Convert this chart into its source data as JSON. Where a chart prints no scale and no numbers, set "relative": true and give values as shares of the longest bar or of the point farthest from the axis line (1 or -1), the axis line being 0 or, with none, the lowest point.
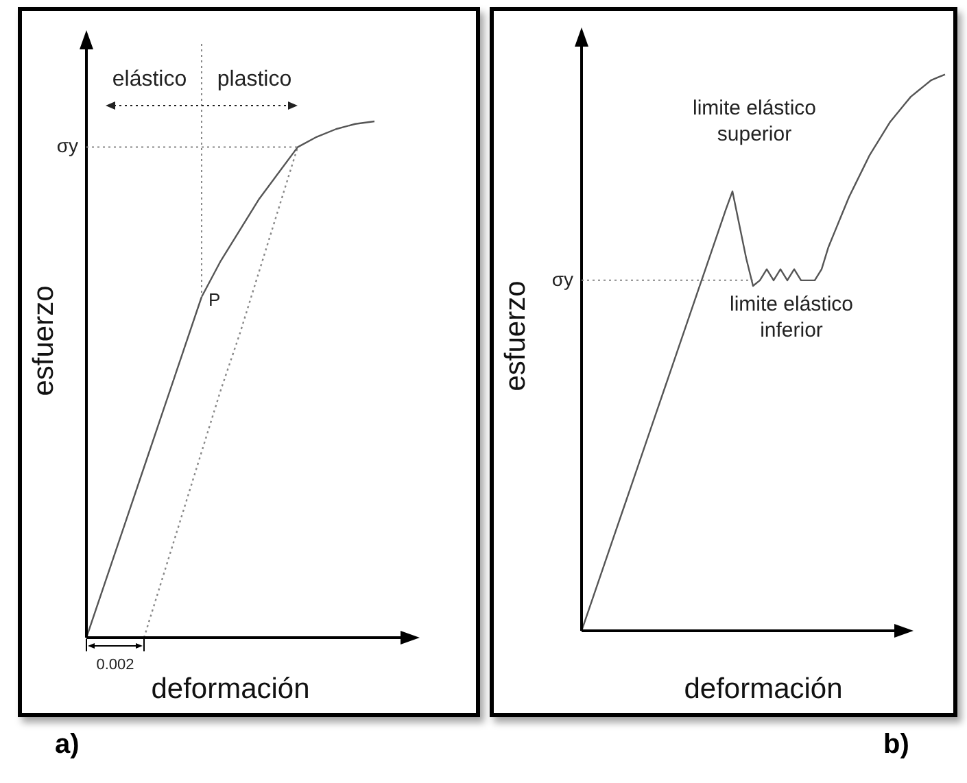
{
  "chart_data": [
    {
      "type": "line",
      "title": "a)",
      "xlabel": "deformación",
      "ylabel": "esfuerzo",
      "relative": true,
      "categories": [
        null,
        null,
        null,
        null,
        null,
        null,
        null,
        null,
        null,
        null,
        null,
        null,
        null,
        null,
        null,
        null
      ],
      "series": [
        {
          "color": "#555555",
          "values": [
            0,
            0.11,
            0.22,
            0.33,
            0.44,
            0.55,
            0.66,
            0.73,
            0.79,
            0.85,
            0.9,
            0.95,
            0.97,
            0.985,
            0.995,
            1
          ]
        },
        {
          "color": "#888888",
          "line_style": "dotted",
          "values": [
            null,
            null,
            null,
            0,
            0.12,
            0.24,
            0.36,
            0.48,
            0.59,
            0.71,
            0.83,
            0.95,
            null,
            null,
            null,
            null
          ]
        }
      ],
      "ref_lines": [
        {
          "axis": "y",
          "value": 0.95,
          "label": "σy",
          "line_style": "dotted"
        }
      ],
      "annotations": [
        "P",
        "elástico",
        "plastico",
        "0.002"
      ]
    },
    {
      "type": "line",
      "title": "b)",
      "xlabel": "deformación",
      "ylabel": "esfuerzo",
      "relative": true,
      "categories": [
        null,
        null,
        null,
        null,
        null,
        null,
        null,
        null,
        null,
        null,
        null,
        null,
        null,
        null,
        null,
        null,
        null,
        null,
        null,
        null,
        null,
        null,
        null,
        null,
        null,
        null,
        null,
        null,
        null,
        null,
        null,
        null,
        null,
        null,
        null,
        null,
        null,
        null,
        null,
        null,
        null,
        null,
        null,
        null,
        null,
        null,
        null,
        null,
        null,
        null,
        null,
        null,
        null,
        null
      ],
      "series": [
        {
          "color": "#555555",
          "values": [
            0,
            0.036,
            0.072,
            0.108,
            0.144,
            0.18,
            0.216,
            0.252,
            0.288,
            0.324,
            0.36,
            0.396,
            0.432,
            0.468,
            0.504,
            0.54,
            0.576,
            0.612,
            0.648,
            0.684,
            0.72,
            0.756,
            0.79,
            0.73,
            0.67,
            0.62,
            0.63,
            0.65,
            0.63,
            0.65,
            0.63,
            0.65,
            0.63,
            0.63,
            0.63,
            0.65,
            0.69,
            0.72,
            0.75,
            0.78,
            0.805,
            0.83,
            0.855,
            0.875,
            0.895,
            0.915,
            0.93,
            0.945,
            0.96,
            0.97,
            0.98,
            0.99,
            0.995,
            1
          ]
        }
      ],
      "ref_lines": [
        {
          "axis": "y",
          "value": 0.63,
          "label": "σy",
          "line_style": "dotted"
        }
      ],
      "annotations": [
        "limite elástico superior",
        "limite elástico inferior"
      ]
    }
  ]
}
